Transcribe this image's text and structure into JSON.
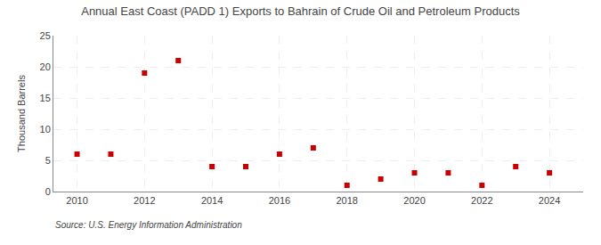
{
  "chart_data": {
    "type": "scatter",
    "title": "Annual East Coast (PADD 1) Exports to Bahrain of Crude Oil and Petroleum Products",
    "ylabel": "Thousand Barrels",
    "annotations": [
      "Source: U.S. Energy Information Administration"
    ],
    "x": [
      2010,
      2011,
      2012,
      2013,
      2014,
      2015,
      2016,
      2017,
      2018,
      2019,
      2020,
      2021,
      2022,
      2023,
      2024
    ],
    "values": [
      6,
      6,
      19,
      21,
      4,
      4,
      6,
      7,
      1,
      2,
      3,
      3,
      1,
      4,
      3
    ],
    "color": "#cc0000",
    "marker": "square",
    "xlim": [
      2009.3,
      2025.0
    ],
    "xticks": [
      2010,
      2012,
      2014,
      2016,
      2018,
      2020,
      2022,
      2024
    ],
    "ylim": [
      0,
      25
    ],
    "yticks": [
      0,
      5,
      10,
      15,
      20,
      25
    ],
    "grid": true
  }
}
